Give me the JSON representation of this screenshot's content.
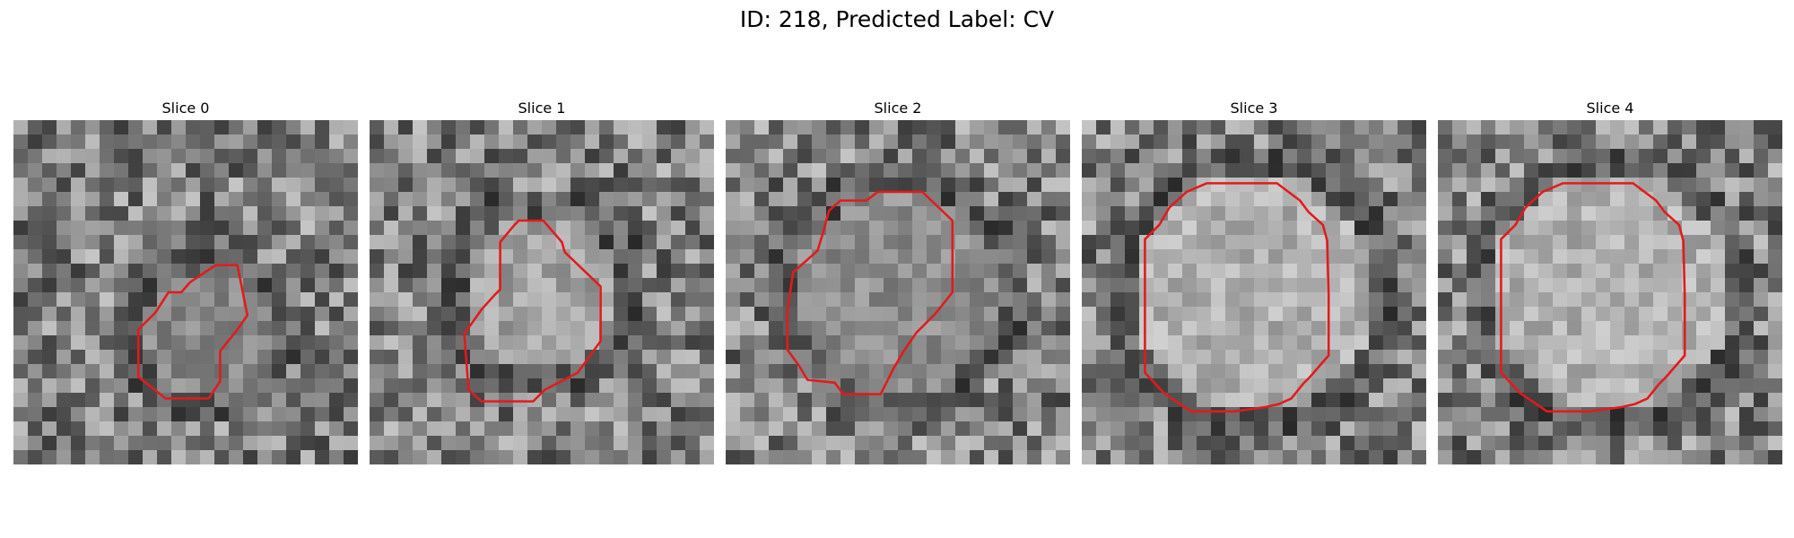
{
  "figure": {
    "title": "ID: 218, Predicted Label: CV",
    "colors": {
      "contour": "#e31a1c",
      "background": "#ffffff"
    },
    "slices": [
      {
        "label": "Slice 0",
        "region": {
          "cx": 13.5,
          "cy": 15,
          "r": 4.5,
          "bright": 0.55
        },
        "contour": [
          [
            15.6,
            10.1
          ],
          [
            14.1,
            10.1
          ],
          [
            12.3,
            11.3
          ],
          [
            11.7,
            12.0
          ],
          [
            10.8,
            12.0
          ],
          [
            9.9,
            13.4
          ],
          [
            8.7,
            14.6
          ],
          [
            8.7,
            17.9
          ],
          [
            10.6,
            19.4
          ],
          [
            13.6,
            19.4
          ],
          [
            14.4,
            18.2
          ],
          [
            14.4,
            16.1
          ],
          [
            15.6,
            14.6
          ],
          [
            16.3,
            13.6
          ]
        ]
      },
      {
        "label": "Slice 1",
        "region": {
          "cx": 12,
          "cy": 12,
          "r": 5.5,
          "bright": 0.75
        },
        "contour": [
          [
            10.4,
            7.0
          ],
          [
            12.1,
            7.0
          ],
          [
            13.4,
            8.5
          ],
          [
            13.6,
            9.2
          ],
          [
            16.1,
            11.6
          ],
          [
            16.1,
            15.4
          ],
          [
            14.5,
            17.6
          ],
          [
            12.2,
            18.8
          ],
          [
            11.4,
            19.6
          ],
          [
            7.8,
            19.6
          ],
          [
            6.9,
            18.8
          ],
          [
            6.6,
            14.9
          ],
          [
            7.8,
            13.2
          ],
          [
            8.7,
            12.2
          ],
          [
            9.1,
            11.8
          ],
          [
            9.1,
            8.5
          ],
          [
            10.1,
            7.3
          ]
        ]
      },
      {
        "label": "Slice 2",
        "region": {
          "cx": 12,
          "cy": 12,
          "r": 7,
          "bright": 0.6
        },
        "contour": [
          [
            10.6,
            5.0
          ],
          [
            13.7,
            5.0
          ],
          [
            15.8,
            7.0
          ],
          [
            15.8,
            12.0
          ],
          [
            14.6,
            13.5
          ],
          [
            13.3,
            14.8
          ],
          [
            12.4,
            16.1
          ],
          [
            11.7,
            17.3
          ],
          [
            10.8,
            19.1
          ],
          [
            8.2,
            19.1
          ],
          [
            7.6,
            18.3
          ],
          [
            5.7,
            18.1
          ],
          [
            5.1,
            17.1
          ],
          [
            4.3,
            16.0
          ],
          [
            4.3,
            13.3
          ],
          [
            4.7,
            10.6
          ],
          [
            5.5,
            9.9
          ],
          [
            6.4,
            9.1
          ],
          [
            6.8,
            7.8
          ],
          [
            7.2,
            6.3
          ],
          [
            8.0,
            5.6
          ],
          [
            9.8,
            5.6
          ]
        ]
      },
      {
        "label": "Slice 3",
        "region": {
          "cx": 12,
          "cy": 12,
          "r": 8.5,
          "bright": 0.85
        },
        "contour": [
          [
            10.4,
            4.4
          ],
          [
            13.6,
            4.4
          ],
          [
            15.2,
            5.6
          ],
          [
            15.8,
            6.4
          ],
          [
            16.8,
            7.3
          ],
          [
            17.1,
            8.4
          ],
          [
            17.2,
            12.2
          ],
          [
            17.2,
            16.4
          ],
          [
            15.9,
            17.9
          ],
          [
            15.4,
            18.4
          ],
          [
            14.6,
            19.4
          ],
          [
            13.7,
            19.8
          ],
          [
            12.8,
            20.0
          ],
          [
            10.6,
            20.3
          ],
          [
            7.6,
            20.3
          ],
          [
            5.7,
            19.0
          ],
          [
            4.4,
            17.6
          ],
          [
            4.4,
            16.2
          ],
          [
            4.4,
            12.2
          ],
          [
            4.4,
            8.3
          ],
          [
            5.4,
            7.3
          ],
          [
            6.1,
            6.1
          ],
          [
            7.3,
            5.0
          ],
          [
            8.7,
            4.4
          ]
        ]
      },
      {
        "label": "Slice 4",
        "region": {
          "cx": 12,
          "cy": 12,
          "r": 8.5,
          "bright": 0.85
        },
        "contour": [
          [
            10.4,
            4.4
          ],
          [
            13.6,
            4.4
          ],
          [
            15.2,
            5.6
          ],
          [
            15.8,
            6.4
          ],
          [
            16.8,
            7.3
          ],
          [
            17.1,
            8.4
          ],
          [
            17.2,
            12.2
          ],
          [
            17.2,
            16.4
          ],
          [
            15.9,
            17.9
          ],
          [
            15.4,
            18.4
          ],
          [
            14.6,
            19.4
          ],
          [
            13.7,
            19.8
          ],
          [
            12.8,
            20.0
          ],
          [
            10.6,
            20.3
          ],
          [
            7.6,
            20.3
          ],
          [
            5.7,
            19.0
          ],
          [
            4.4,
            17.6
          ],
          [
            4.4,
            16.2
          ],
          [
            4.4,
            12.2
          ],
          [
            4.4,
            8.3
          ],
          [
            5.4,
            7.3
          ],
          [
            6.1,
            6.1
          ],
          [
            7.3,
            5.0
          ],
          [
            8.7,
            4.4
          ]
        ]
      }
    ]
  }
}
